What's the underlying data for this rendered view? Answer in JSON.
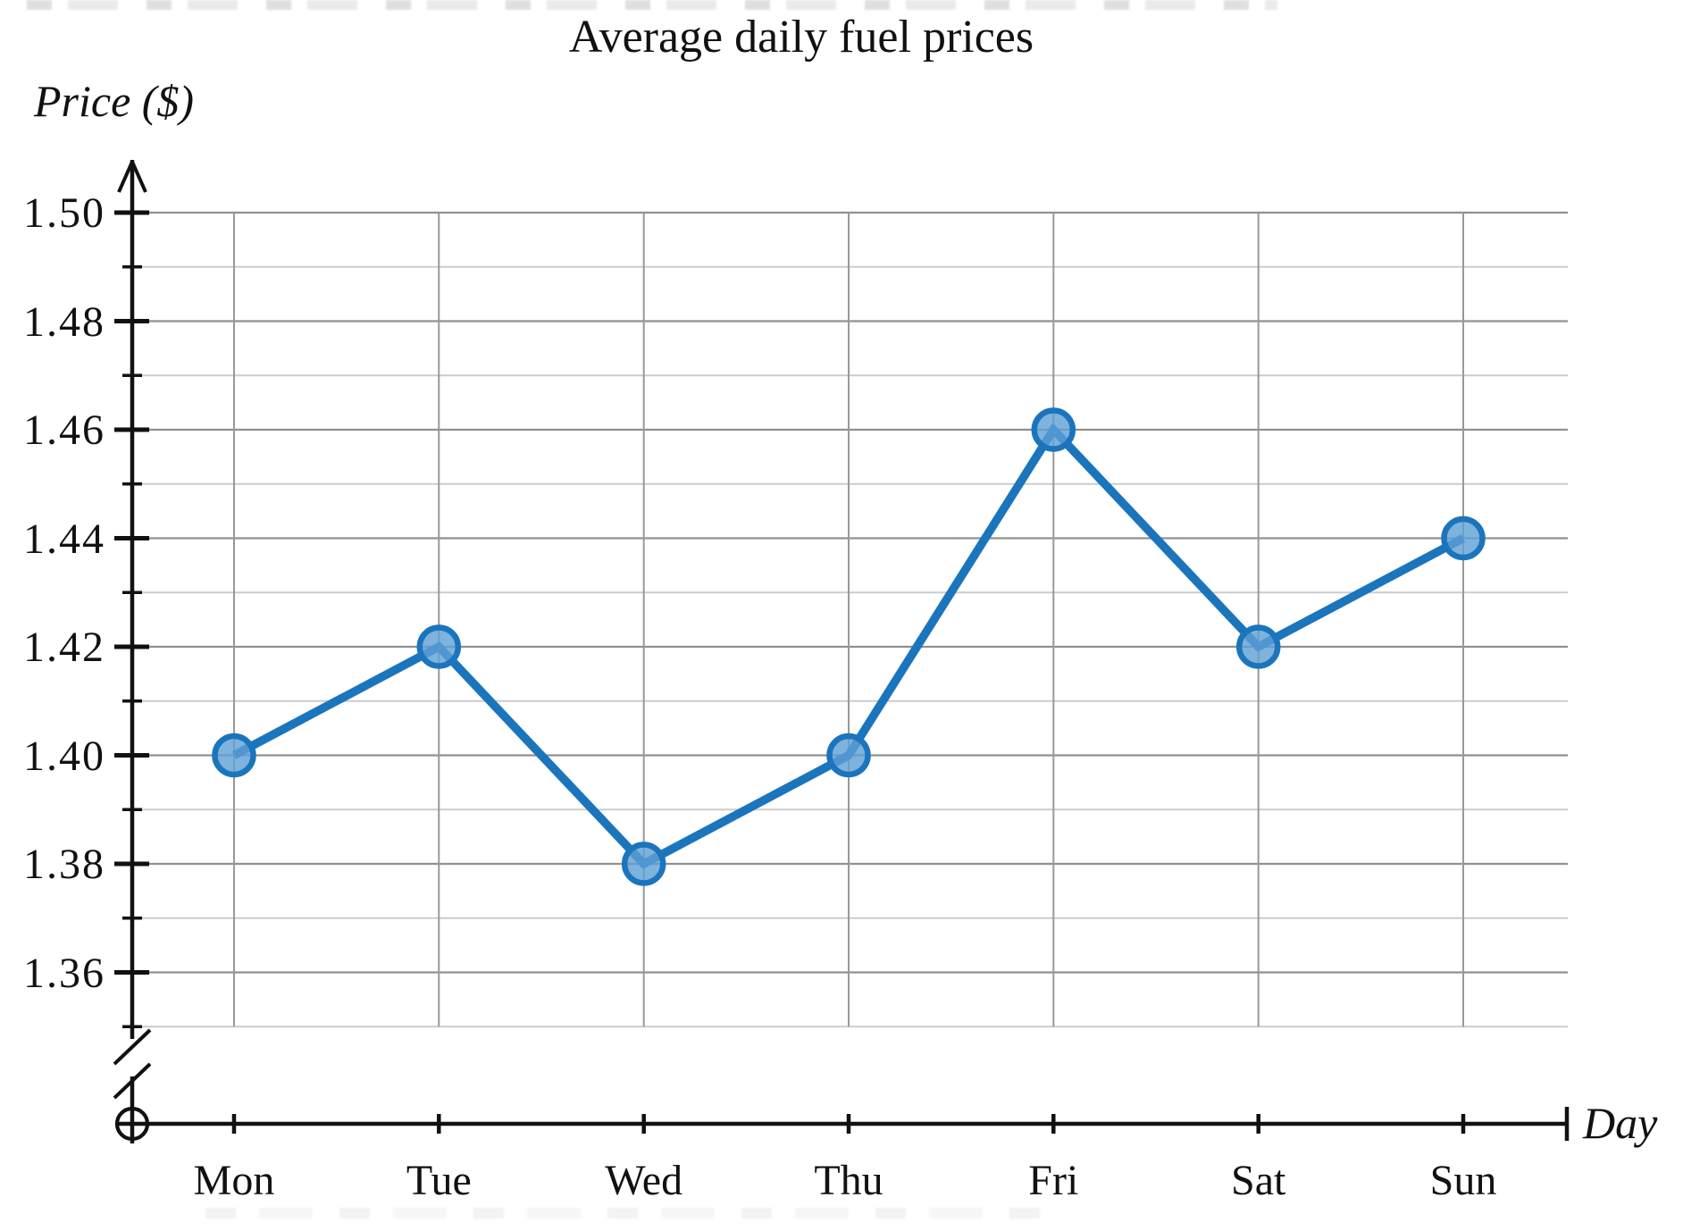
{
  "chart_data": {
    "type": "line",
    "title": "Average daily fuel prices",
    "xlabel": "Day",
    "ylabel": "Price ($)",
    "categories": [
      "Mon",
      "Tue",
      "Wed",
      "Thu",
      "Fri",
      "Sat",
      "Sun"
    ],
    "values": [
      1.4,
      1.42,
      1.38,
      1.4,
      1.46,
      1.42,
      1.44
    ],
    "ylim": [
      1.35,
      1.5
    ],
    "y_major_ticks": [
      1.5,
      1.48,
      1.46,
      1.44,
      1.42,
      1.4,
      1.38,
      1.36
    ],
    "y_minor_tick_step": 0.01,
    "tick_label_decimals": 2,
    "grid": "horizontal major+minor, vertical at each category",
    "axis_break_on_y": true,
    "origin_symbol": "circle-plus",
    "legend_position": "none",
    "marker": "circle",
    "colors": {
      "line": "#1b75bc",
      "marker_fill": "#5ea0d6",
      "grid_major": "#909090",
      "grid_minor": "#cccccc",
      "grid_vertical": "#999999",
      "axis": "#111111",
      "text": "#111111"
    }
  }
}
